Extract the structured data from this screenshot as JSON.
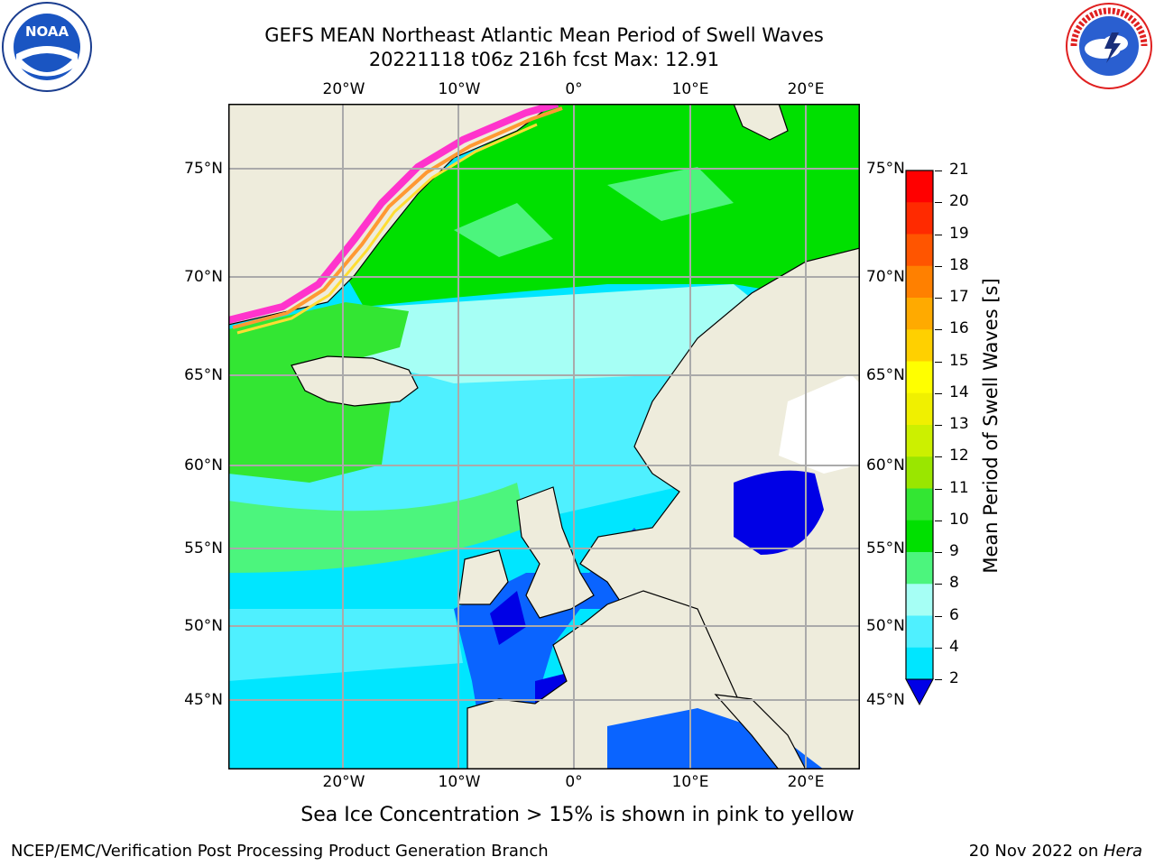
{
  "title": {
    "line1": "GEFS MEAN Northeast Atlantic Mean Period of Swell Waves",
    "line2": "20221118 t06z 216h fcst   Max: 12.91"
  },
  "logos": {
    "left": {
      "text": "NOAA",
      "icon": "noaa-logo-icon",
      "ring_text": "NATIONAL OCEANIC AND ATMOSPHERIC ADMINISTRATION · U.S. DEPARTMENT OF COMMERCE"
    },
    "right": {
      "icon": "nws-logo-icon",
      "ring_text": "NATIONAL WEATHER SERVICE"
    }
  },
  "map": {
    "lon_ticks": [
      "20°W",
      "10°W",
      "0°",
      "10°E",
      "20°E"
    ],
    "lat_ticks": [
      "75°N",
      "70°N",
      "65°N",
      "60°N",
      "55°N",
      "50°N",
      "45°N"
    ],
    "colors": {
      "land": "#eeecdc",
      "ice_pink": "#ff33cc",
      "ice_orange": "#ff9933",
      "ice_yellow": "#ffdd33",
      "grid": "#aaaaaa"
    }
  },
  "colorbar": {
    "label": "Mean Period of Swell Waves [s]",
    "ticks": [
      "2",
      "4",
      "6",
      "8",
      "9",
      "10",
      "11",
      "12",
      "13",
      "14",
      "15",
      "16",
      "17",
      "18",
      "19",
      "20",
      "21"
    ],
    "colors": [
      "#0a64ff",
      "#00e6ff",
      "#4ff0ff",
      "#a6fff5",
      "#4cf57d",
      "#00e000",
      "#33e633",
      "#9ae600",
      "#ccf000",
      "#f0f000",
      "#ffff00",
      "#ffd000",
      "#ffaa00",
      "#ff8000",
      "#ff5500",
      "#ff2a00",
      "#ff0000"
    ],
    "extend_color": "#0000e6"
  },
  "note": "Sea Ice Concentration > 15% is shown in pink to yellow",
  "footer": {
    "left": "NCEP/EMC/Verification Post Processing Product Generation Branch",
    "right_date": "20 Nov 2022 on ",
    "right_host": "Hera"
  }
}
